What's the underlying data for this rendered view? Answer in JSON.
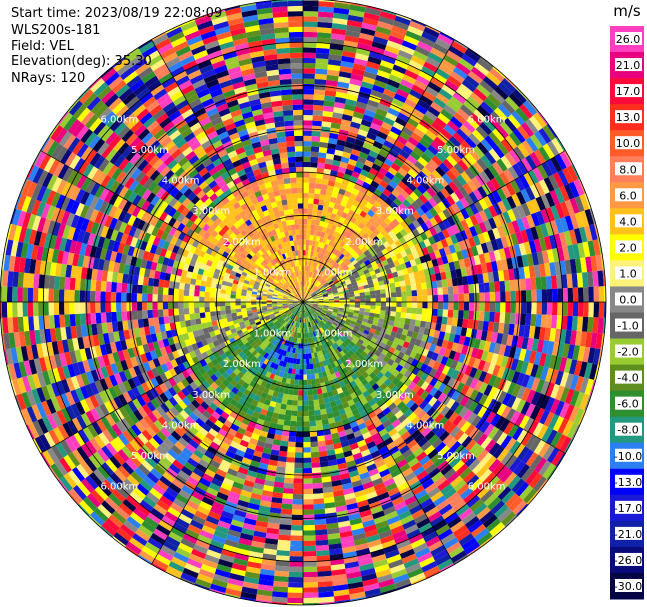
{
  "header": {
    "start_time": "Start time: 2023/08/19 22:08:09",
    "instrument": "WLS200s-181",
    "field": "Field: VEL",
    "elevation": "Elevation(deg): 35.30",
    "nrays": "NRays: 120"
  },
  "chart_data": {
    "type": "heatmap",
    "projection": "polar (PPI scan)",
    "field": "VEL",
    "n_rays": 120,
    "max_range_km": 7,
    "range_rings_km": [
      1,
      2,
      3,
      4,
      5,
      6,
      7
    ],
    "range_ring_labels": [
      "1.00km",
      "2.00km",
      "3.00km",
      "4.00km",
      "5.00km",
      "6.00km"
    ],
    "azimuth_lines_deg": [
      0,
      30,
      60,
      90,
      120,
      150,
      180,
      210,
      240,
      270,
      300,
      330
    ],
    "near_field_pattern": {
      "north_sector_velocity_ms": "2.0 to 8.0",
      "east_sector_velocity_ms": "-1.0 to 2.0",
      "south_sector_velocity_ms": "-6.0 to -13.0",
      "west_sector_velocity_ms": "0.0 to 4.0",
      "valid_data_range_km": 3,
      "beyond_valid_range": "noise (full colour scale)"
    },
    "colorbar": {
      "unit": "m/s",
      "ticks": [
        "26.0",
        "21.0",
        "17.0",
        "13.0",
        "10.0",
        "8.0",
        "6.0",
        "4.0",
        "2.0",
        "1.0",
        "0.0",
        "-1.0",
        "-2.0",
        "-4.0",
        "-6.0",
        "-8.0",
        "-10.0",
        "-13.0",
        "-17.0",
        "-21.0",
        "-26.0",
        "-30.0"
      ],
      "colors": [
        "#ff3fbf",
        "#e8007f",
        "#ff0a3a",
        "#ff2f1f",
        "#ff5c2a",
        "#ff7f5a",
        "#ff9944",
        "#ffc21a",
        "#ffff00",
        "#fff27a",
        "#888888",
        "#666666",
        "#99cc33",
        "#5e8e1e",
        "#2f8f2f",
        "#22997e",
        "#2b7ff0",
        "#0000ff",
        "#1a1ad6",
        "#1020a8",
        "#0a0a7a",
        "#050545"
      ]
    }
  }
}
